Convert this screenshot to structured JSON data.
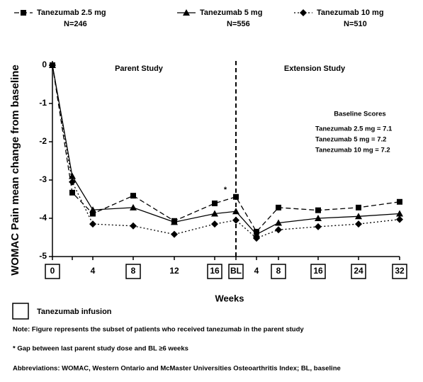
{
  "chart_data": {
    "type": "line",
    "y_label": "WOMAC Pain mean change from baseline",
    "x_label": "Weeks",
    "categories": [
      "0",
      null,
      "4",
      "8",
      "12",
      "16",
      "BL",
      "4",
      "8",
      "16",
      "24",
      "32"
    ],
    "infusion": [
      true,
      false,
      false,
      true,
      false,
      true,
      true,
      false,
      true,
      true,
      true,
      true
    ],
    "infusion_label": "Tanezumab infusion",
    "ylim": [
      -5,
      0
    ],
    "yticks": [
      0,
      -1,
      -2,
      -3,
      -4,
      -5
    ],
    "series": [
      {
        "name": "Tanezumab 2.5 mg",
        "n": "N=246",
        "color": "#000000",
        "line": "dashed",
        "marker": "square",
        "values": [
          0,
          -3.33,
          -3.88,
          -3.41,
          -4.07,
          -3.61,
          -3.44,
          -4.35,
          -3.72,
          -3.79,
          -3.72,
          -3.57
        ]
      },
      {
        "name": "Tanezumab 5 mg",
        "n": "N=556",
        "color": "#000000",
        "line": "solid",
        "marker": "triangle",
        "values": [
          0,
          -2.9,
          -3.78,
          -3.72,
          -4.1,
          -3.88,
          -3.82,
          -4.42,
          -4.12,
          -4.0,
          -3.95,
          -3.88
        ]
      },
      {
        "name": "Tanezumab 10 mg",
        "n": "N=510",
        "color": "#000000",
        "line": "dotted",
        "marker": "diamond",
        "values": [
          0,
          -3.05,
          -4.15,
          -4.2,
          -4.42,
          -4.15,
          -4.05,
          -4.52,
          -4.3,
          -4.22,
          -4.15,
          -4.03
        ]
      }
    ],
    "annotations": {
      "parent": "Parent Study",
      "extension": "Extension Study",
      "asterisk": "*",
      "baseline_title": "Baseline Scores",
      "baseline_lines": [
        "Tanezumab 2.5 mg = 7.1",
        "Tanezumab 5 mg = 7.2",
        "Tanezumab 10 mg = 7.2"
      ]
    },
    "notes": [
      "Note: Figure represents the subset of patients who received tanezumab in the parent study",
      "* Gap between last parent study dose and BL ≥6 weeks",
      "Abbreviations: WOMAC, Western Ontario and McMaster Universities Osteoarthritis Index; BL, baseline"
    ]
  }
}
